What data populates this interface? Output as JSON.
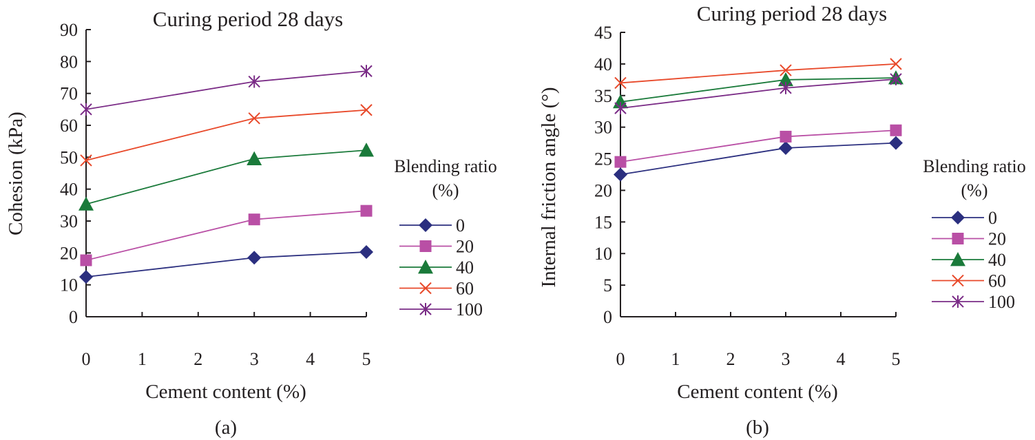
{
  "chart_data": [
    {
      "type": "line",
      "panel_label": "(a)",
      "title": "Curing period 28 days",
      "xlabel": "Cement content (%)",
      "ylabel": "Cohesion (kPa)",
      "xlim": [
        0,
        5
      ],
      "ylim": [
        0,
        90
      ],
      "xticks": [
        0,
        1,
        2,
        3,
        4,
        5
      ],
      "yticks": [
        0,
        10,
        20,
        30,
        40,
        50,
        60,
        70,
        80,
        90
      ],
      "grid": false,
      "legend_title": [
        "Blending ratio",
        "(%)"
      ],
      "legend_position": "right",
      "x": [
        0,
        3,
        5
      ],
      "series": [
        {
          "name": "0",
          "values": [
            12.5,
            18.5,
            20.3
          ]
        },
        {
          "name": "20",
          "values": [
            17.7,
            30.5,
            33.2
          ]
        },
        {
          "name": "40",
          "values": [
            35.3,
            49.5,
            52.2
          ]
        },
        {
          "name": "60",
          "values": [
            49.0,
            62.2,
            64.8
          ]
        },
        {
          "name": "100",
          "values": [
            65.0,
            73.7,
            77.0
          ]
        }
      ]
    },
    {
      "type": "line",
      "panel_label": "(b)",
      "title": "Curing period 28 days",
      "xlabel": "Cement content (%)",
      "ylabel": "Internal friction angle (°)",
      "xlim": [
        0,
        5
      ],
      "ylim": [
        0,
        45
      ],
      "xticks": [
        0,
        1,
        2,
        3,
        4,
        5
      ],
      "yticks": [
        0,
        5,
        10,
        15,
        20,
        25,
        30,
        35,
        40,
        45
      ],
      "grid": false,
      "legend_title": [
        "Blending ratio",
        "(%)"
      ],
      "legend_position": "right",
      "x": [
        0,
        3,
        5
      ],
      "series": [
        {
          "name": "0",
          "values": [
            22.5,
            26.7,
            27.5
          ]
        },
        {
          "name": "20",
          "values": [
            24.5,
            28.5,
            29.5
          ]
        },
        {
          "name": "40",
          "values": [
            34.0,
            37.5,
            37.8
          ]
        },
        {
          "name": "60",
          "values": [
            37.0,
            39.0,
            40.0
          ]
        },
        {
          "name": "100",
          "values": [
            33.0,
            36.2,
            37.6
          ]
        }
      ]
    }
  ],
  "series_styles": [
    {
      "name": "0",
      "color": "#2b2f7f",
      "marker": "diamond"
    },
    {
      "name": "20",
      "color": "#b94fa5",
      "marker": "square"
    },
    {
      "name": "40",
      "color": "#1a7a3a",
      "marker": "triangle"
    },
    {
      "name": "60",
      "color": "#e8492a",
      "marker": "x"
    },
    {
      "name": "100",
      "color": "#7a2b86",
      "marker": "asterisk"
    }
  ]
}
